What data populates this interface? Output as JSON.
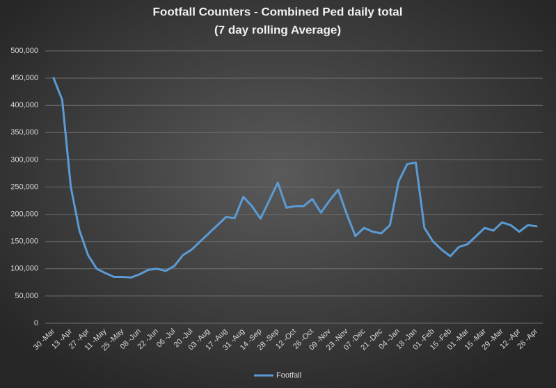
{
  "chart_data": {
    "type": "line",
    "title": [
      "Footfall Counters - Combined Ped daily total",
      "(7 day rolling Average)"
    ],
    "categories": [
      "30 -Mar",
      null,
      "13 -Apr",
      null,
      "27 -Apr",
      null,
      "11 -May",
      null,
      "25 -May",
      null,
      "08 -Jun",
      null,
      "22 -Jun",
      null,
      "06 -Jul",
      null,
      "20 -Jul",
      null,
      "03 -Aug",
      null,
      "17 -Aug",
      null,
      "31 -Aug",
      null,
      "14 -Sep",
      null,
      "28 -Sep",
      null,
      "12 -Oct",
      null,
      "26 -Oct",
      null,
      "09 -Nov",
      null,
      "23 -Nov",
      null,
      "07 -Dec",
      null,
      "21 -Dec",
      null,
      "04 -Jan",
      null,
      "18 -Jan",
      null,
      "01 -Feb",
      null,
      "15 -Feb",
      null,
      "01 -Mar",
      null,
      "15 -Mar",
      null,
      "29 -Mar",
      null,
      "12 -Apr",
      null,
      "26 -Apr"
    ],
    "series": [
      {
        "name": "Footfall",
        "color": "#5b9bd5",
        "values": [
          450000,
          410000,
          250000,
          170000,
          125000,
          100000,
          92000,
          85000,
          85000,
          84000,
          90000,
          98000,
          100000,
          96000,
          105000,
          125000,
          135000,
          150000,
          165000,
          180000,
          195000,
          193000,
          232000,
          215000,
          192000,
          225000,
          258000,
          212000,
          215000,
          215000,
          228000,
          203000,
          225000,
          245000,
          200000,
          160000,
          175000,
          168000,
          165000,
          180000,
          260000,
          292000,
          295000,
          175000,
          150000,
          135000,
          123000,
          140000,
          145000,
          160000,
          175000,
          170000,
          185000,
          180000,
          168000,
          180000,
          178000
        ]
      }
    ],
    "ylim": [
      0,
      500000
    ],
    "yticks": [
      0,
      {
        "value": 50000,
        "label": "50,000"
      },
      {
        "value": 100000,
        "label": "100,000"
      },
      {
        "value": 150000,
        "label": "150,000"
      },
      {
        "value": 200000,
        "label": "200,000"
      },
      {
        "value": 250000,
        "label": "250,000"
      },
      {
        "value": 300000,
        "label": "300,000"
      },
      {
        "value": 350000,
        "label": "350,000"
      },
      {
        "value": 400000,
        "label": "400,000"
      },
      {
        "value": 450000,
        "label": "450,000"
      },
      {
        "value": {
          "value": 500000
        },
        "label": "500,000"
      }
    ],
    "grid": true,
    "legend": "bottom"
  }
}
